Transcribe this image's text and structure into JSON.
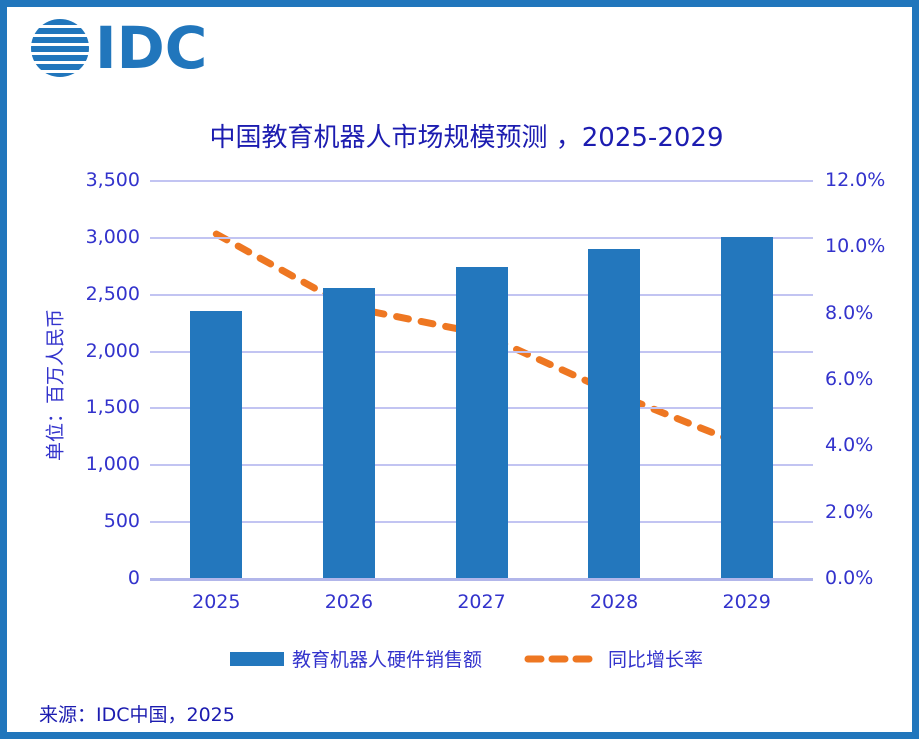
{
  "brand": {
    "logo_text": "IDC",
    "logo_color": "#2176BC"
  },
  "title": "中国教育机器人市场规模预测 ，2025-2029",
  "source_note": "来源：IDC中国，2025",
  "y_axis_left": {
    "title": "单位：百万人民币",
    "tick_labels": [
      "3,500",
      "3,000",
      "2,500",
      "2,000",
      "1,500",
      "1,000",
      "500",
      "0"
    ]
  },
  "y_axis_right": {
    "tick_labels": [
      "12.0%",
      "10.0%",
      "8.0%",
      "6.0%",
      "4.0%",
      "2.0%",
      "0.0%"
    ]
  },
  "legend": [
    {
      "label": "教育机器人硬件销售额",
      "marker": "bar-swatch",
      "color": "#2377BD"
    },
    {
      "label": "同比增长率",
      "marker": "dashed-line-swatch",
      "color": "#EE7722"
    }
  ],
  "chart_data": {
    "type": "bar",
    "subtype": "bar+dashed-line-combo",
    "title": "中国教育机器人市场规模预测 ，2025-2029",
    "categories": [
      "2025",
      "2026",
      "2027",
      "2028",
      "2029"
    ],
    "series": [
      {
        "name": "教育机器人硬件销售额",
        "type": "bar",
        "axis": "left",
        "unit": "百万人民币",
        "values": [
          2360,
          2560,
          2740,
          2900,
          3005
        ]
      },
      {
        "name": "同比增长率",
        "type": "line",
        "style": "dashed",
        "axis": "right",
        "unit": "%",
        "values": [
          10.4,
          8.2,
          7.4,
          5.6,
          4.0
        ]
      }
    ],
    "ylabel_left": "单位：百万人民币",
    "ylim_left": [
      0,
      3500
    ],
    "ytick_step_left": 500,
    "ylim_right": [
      0,
      12
    ],
    "ytick_step_right": 2,
    "grid": true,
    "legend_position": "bottom",
    "colors": {
      "bar": "#2377BD",
      "line": "#EE7722",
      "grid": "#C2C4F2",
      "tick_text": "#3333CC",
      "title_text": "#1C1CB0"
    }
  }
}
